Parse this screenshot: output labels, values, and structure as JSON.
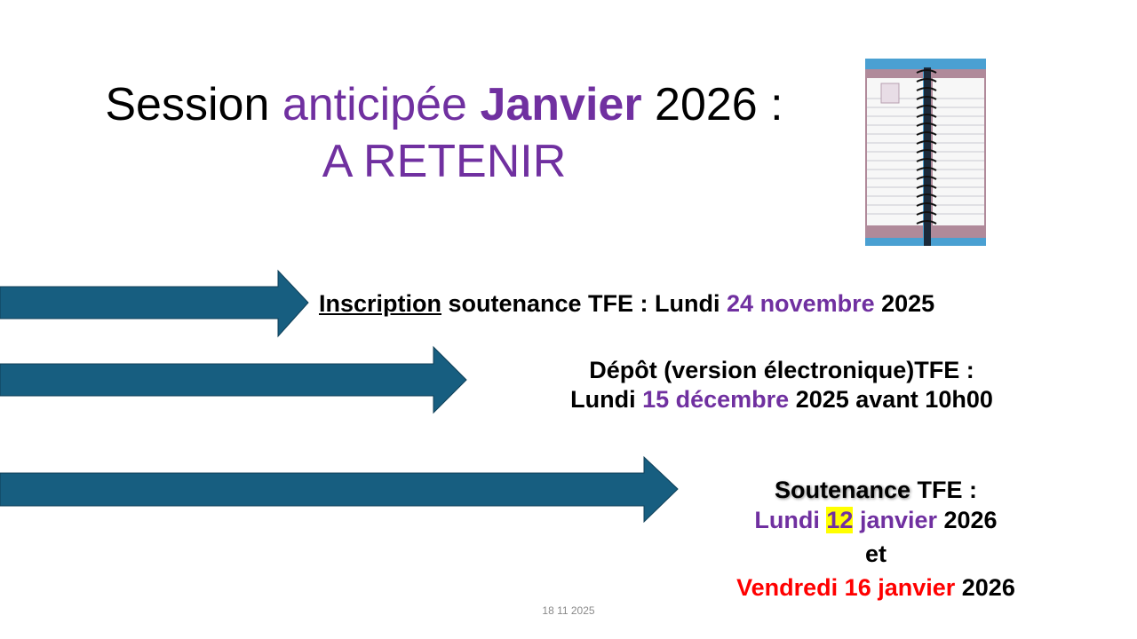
{
  "title": {
    "line1": {
      "w1": "Session",
      "w2": "anticipée",
      "w3": "Janvier",
      "w4": "2026 :"
    },
    "line2": "A RETENIR"
  },
  "image": {
    "icon": "spiral-planner-picture"
  },
  "items": [
    {
      "p1": "Inscription",
      "p2": " soutenance TFE : Lundi ",
      "p3": "24 novembre",
      "p4": " 2025"
    },
    {
      "l1": "Dépôt (version électronique)TFE :",
      "p1": "Lundi ",
      "p2": "15 décembre",
      "p3": " 2025 avant 10h00"
    },
    {
      "l1a": "Soutenance",
      "l1b": " TFE :",
      "l2a": "Lundi ",
      "l2b": "12",
      "l2c": " janvier",
      "l2d": " 2026",
      "l3": "et",
      "l4a": "Vendredi 16 janvier",
      "l4b": " 2026"
    }
  ],
  "footer": "18 11 2025",
  "colors": {
    "accent": "#7030a0",
    "arrow": "#175e80",
    "highlight": "#ffff00",
    "red": "#ff0000"
  }
}
